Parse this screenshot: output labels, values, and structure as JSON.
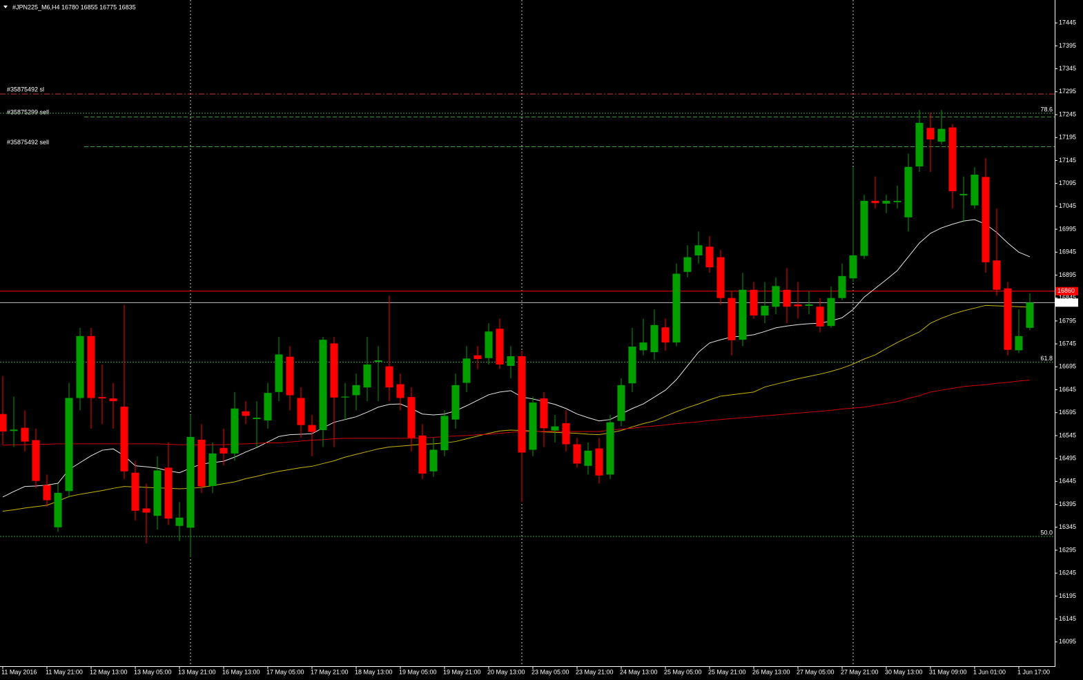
{
  "chart_data": {
    "type": "candlestick",
    "title": "#JPN225_M6,H4  16780 16855 16775 16835",
    "categories": [
      "11 May 2016",
      null,
      null,
      null,
      "11 May 21:00",
      null,
      null,
      null,
      "12 May 13:00",
      null,
      null,
      null,
      "13 May 05:00",
      null,
      null,
      null,
      "13 May 21:00",
      null,
      null,
      null,
      "16 May 13:00",
      null,
      null,
      null,
      "17 May 05:00",
      null,
      null,
      null,
      "17 May 21:00",
      null,
      null,
      null,
      "18 May 13:00",
      null,
      null,
      null,
      "19 May 05:00",
      null,
      null,
      null,
      "19 May 21:00",
      null,
      null,
      null,
      "20 May 13:00",
      null,
      null,
      null,
      "23 May 05:00",
      null,
      null,
      null,
      "23 May 21:00",
      null,
      null,
      null,
      "24 May 13:00",
      null,
      null,
      null,
      "25 May 05:00",
      null,
      null,
      null,
      "25 May 21:00",
      null,
      null,
      null,
      "26 May 13:00",
      null,
      null,
      null,
      "27 May 05:00",
      null,
      null,
      null,
      "27 May 21:00",
      null,
      null,
      null,
      "30 May 13:00",
      null,
      null,
      null,
      "31 May 09:00",
      null,
      null,
      null,
      "1 Jun 01:00",
      null,
      null,
      null,
      "1 Jun 17:00",
      null
    ],
    "open": [
      16592,
      16555,
      16562,
      16535,
      16437,
      16345,
      16424,
      16627,
      16762,
      16629,
      16626,
      16608,
      16464,
      16386,
      16370,
      16475,
      16348,
      16344,
      16536,
      16435,
      16518,
      16506,
      16598,
      16581,
      16578,
      16640,
      16717,
      16627,
      16568,
      16557,
      16746,
      16628,
      16633,
      16650,
      16706,
      16696,
      16657,
      16629,
      16545,
      16467,
      16513,
      16580,
      16660,
      16720,
      16714,
      16778,
      16697,
      16718,
      16514,
      16626,
      16556,
      16572,
      16526,
      16479,
      16517,
      16460,
      16577,
      16659,
      16731,
      16727,
      16781,
      16748,
      16902,
      16938,
      16957,
      16934,
      16845,
      16754,
      16863,
      16807,
      16826,
      16863,
      16831,
      16828,
      16826,
      16784,
      16845,
      16888,
      16937,
      17057,
      17051,
      17054,
      17021,
      17132,
      17216,
      17186,
      17217,
      17069,
      17047,
      17109,
      16927,
      16866,
      16731,
      16780
    ],
    "high": [
      16675,
      16630,
      16600,
      16560,
      16460,
      16440,
      16660,
      16780,
      16780,
      16700,
      16660,
      16830,
      16490,
      16440,
      16500,
      16530,
      16400,
      16590,
      16570,
      16530,
      16560,
      16640,
      16620,
      16620,
      16660,
      16760,
      16740,
      16650,
      16590,
      16760,
      16760,
      16660,
      16680,
      16760,
      16740,
      16850,
      16680,
      16650,
      16570,
      16540,
      16600,
      16680,
      16740,
      16740,
      16790,
      16800,
      16740,
      16730,
      16630,
      16640,
      16590,
      16600,
      16540,
      16530,
      16540,
      16590,
      16670,
      16780,
      16800,
      16820,
      16800,
      16920,
      16960,
      16990,
      16980,
      16950,
      16860,
      16900,
      16880,
      16880,
      16890,
      16910,
      16880,
      16860,
      16845,
      16870,
      16920,
      17130,
      17070,
      17110,
      17070,
      17090,
      17160,
      17255,
      17250,
      17255,
      17225,
      17110,
      17130,
      17150,
      17040,
      16880,
      16820,
      16855
    ],
    "low": [
      16524,
      16520,
      16510,
      16430,
      16390,
      16335,
      16410,
      16600,
      16560,
      16570,
      16560,
      16450,
      16360,
      16310,
      16340,
      16350,
      16315,
      16280,
      16420,
      16420,
      16480,
      16490,
      16570,
      16520,
      16560,
      16620,
      16600,
      16540,
      16500,
      16520,
      16520,
      16580,
      16600,
      16620,
      16620,
      16620,
      16600,
      16510,
      16450,
      16455,
      16500,
      16560,
      16640,
      16690,
      16700,
      16690,
      16670,
      16400,
      16500,
      16520,
      16530,
      16510,
      16475,
      16460,
      16440,
      16450,
      16565,
      16640,
      16720,
      16710,
      16730,
      16740,
      16890,
      16920,
      16900,
      16830,
      16720,
      16740,
      16800,
      16790,
      16810,
      16790,
      16800,
      16810,
      16770,
      16780,
      16840,
      16880,
      16930,
      17040,
      17030,
      17040,
      16990,
      17120,
      17120,
      17180,
      17040,
      17010,
      17040,
      16900,
      16850,
      16720,
      16725,
      16775
    ],
    "close": [
      16554,
      16558,
      16532,
      16446,
      16404,
      16420,
      16627,
      16762,
      16627,
      16626,
      16620,
      16467,
      16381,
      16377,
      16469,
      16364,
      16366,
      16542,
      16434,
      16506,
      16506,
      16604,
      16588,
      16584,
      16638,
      16722,
      16633,
      16568,
      16553,
      16754,
      16628,
      16630,
      16655,
      16700,
      16709,
      16650,
      16627,
      16540,
      16462,
      16514,
      16588,
      16655,
      16713,
      16712,
      16772,
      16700,
      16718,
      16508,
      16617,
      16561,
      16565,
      16526,
      16484,
      16512,
      16458,
      16574,
      16655,
      16739,
      16748,
      16786,
      16748,
      16898,
      16934,
      16960,
      16912,
      16845,
      16753,
      16863,
      16807,
      16828,
      16871,
      16826,
      16827,
      16831,
      16783,
      16845,
      16893,
      16938,
      17057,
      17052,
      17057,
      17057,
      17131,
      17227,
      17191,
      17214,
      17078,
      17072,
      17114,
      16923,
      16863,
      16732,
      16762,
      16835
    ],
    "bull_color": "#00a000",
    "bear_color": "#ff0000",
    "moving_averages": [
      {
        "color": "#e6e6e6",
        "values": [
          16411,
          16423,
          16434,
          16435,
          16437,
          16441,
          16471,
          16486,
          16501,
          16513,
          16516,
          16501,
          16479,
          16477,
          16474,
          16468,
          16464,
          16474,
          16483,
          16486,
          16489,
          16498,
          16509,
          16519,
          16531,
          16543,
          16547,
          16548,
          16549,
          16562,
          16574,
          16580,
          16586,
          16596,
          16607,
          16613,
          16614,
          16604,
          16592,
          16590,
          16592,
          16599,
          16610,
          16622,
          16634,
          16640,
          16643,
          16629,
          16625,
          16619,
          16613,
          16604,
          16592,
          16584,
          16577,
          16580,
          16592,
          16604,
          16614,
          16629,
          16644,
          16667,
          16697,
          16727,
          16747,
          16754,
          16760,
          16762,
          16765,
          16772,
          16780,
          16784,
          16787,
          16789,
          16790,
          16795,
          16802,
          16820,
          16847,
          16866,
          16885,
          16905,
          16935,
          16965,
          16986,
          16998,
          17006,
          17013,
          17016,
          17006,
          16988,
          16965,
          16945,
          16935
        ]
      },
      {
        "color": "#c8b400",
        "values": [
          16380,
          16383,
          16387,
          16390,
          16393,
          16402,
          16412,
          16417,
          16421,
          16425,
          16430,
          16434,
          16433,
          16432,
          16431,
          16430,
          16429,
          16430,
          16432,
          16436,
          16440,
          16444,
          16451,
          16456,
          16462,
          16467,
          16471,
          16475,
          16478,
          16484,
          16490,
          16498,
          16504,
          16510,
          16516,
          16520,
          16522,
          16524,
          16526,
          16527,
          16529,
          16532,
          16538,
          16544,
          16550,
          16555,
          16557,
          16556,
          16555,
          16553,
          16552,
          16551,
          16550,
          16548,
          16547,
          16551,
          16556,
          16564,
          16571,
          16577,
          16587,
          16597,
          16606,
          16614,
          16623,
          16631,
          16634,
          16637,
          16640,
          16651,
          16657,
          16663,
          16669,
          16674,
          16679,
          16685,
          16692,
          16701,
          16712,
          16721,
          16735,
          16748,
          16760,
          16771,
          16790,
          16801,
          16810,
          16817,
          16823,
          16829,
          16828,
          16827,
          16826,
          16825
        ]
      },
      {
        "color": "#d00000",
        "values": [
          16524,
          16525,
          16525,
          16526,
          16526,
          16527,
          16527,
          16527,
          16527,
          16527,
          16527,
          16527,
          16527,
          16527,
          16527,
          16526,
          16525,
          16525,
          16524,
          16525,
          16525,
          16526,
          16527,
          16528,
          16529,
          16529,
          16531,
          16533,
          16535,
          16536,
          16538,
          16539,
          16539,
          16539,
          16539,
          16539,
          16539,
          16539,
          16540,
          16541,
          16543,
          16544,
          16545,
          16547,
          16548,
          16550,
          16552,
          16554,
          16554,
          16554,
          16554,
          16554,
          16554,
          16554,
          16554,
          16557,
          16559,
          16561,
          16564,
          16566,
          16568,
          16571,
          16573,
          16575,
          16578,
          16580,
          16582,
          16584,
          16586,
          16588,
          16590,
          16592,
          16594,
          16596,
          16598,
          16600,
          16603,
          16605,
          16607,
          16611,
          16615,
          16619,
          16626,
          16632,
          16640,
          16644,
          16648,
          16652,
          16654,
          16656,
          16659,
          16661,
          16664,
          16666
        ]
      }
    ],
    "levels": [
      {
        "label": "#35875492 sl",
        "value": 17290,
        "color": "#d03030",
        "line_style": "dashdot",
        "label_side": "left"
      },
      {
        "label": "#35875299 sell",
        "value": 17240,
        "color": "#40a040",
        "line_style": "dashed",
        "label_side": "left"
      },
      {
        "label": "#35875492 sell",
        "value": 17175,
        "color": "#40a040",
        "line_style": "dashed",
        "label_side": "left"
      },
      {
        "label": "78.6",
        "value": 17248,
        "color": "#40a040",
        "line_style": "dotted",
        "label_side": "right"
      },
      {
        "label": "61.8",
        "value": 16705,
        "color": "#40a040",
        "line_style": "dotted",
        "label_side": "right"
      },
      {
        "label": "50.0",
        "value": 16325,
        "color": "#40a040",
        "line_style": "dotted",
        "label_side": "right"
      }
    ],
    "price_lines": [
      {
        "value": 16860,
        "color": "#ff0000"
      },
      {
        "value": 16835,
        "color": "#c0c0c0"
      }
    ],
    "ylim": [
      16042,
      17495
    ],
    "yticks": [
      17445,
      17395,
      17345,
      17295,
      17245,
      17195,
      17145,
      17095,
      17045,
      16995,
      16945,
      16895,
      16845,
      16795,
      16745,
      16695,
      16645,
      16595,
      16545,
      16495,
      16445,
      16395,
      16345,
      16295,
      16245,
      16195,
      16145,
      16095
    ]
  }
}
